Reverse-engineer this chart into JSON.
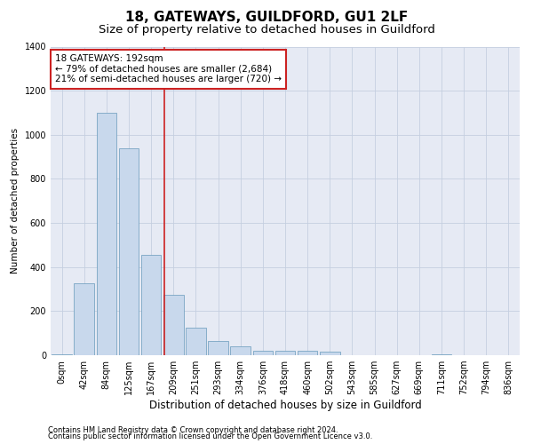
{
  "title1": "18, GATEWAYS, GUILDFORD, GU1 2LF",
  "title2": "Size of property relative to detached houses in Guildford",
  "xlabel": "Distribution of detached houses by size in Guildford",
  "ylabel": "Number of detached properties",
  "bar_labels": [
    "0sqm",
    "42sqm",
    "84sqm",
    "125sqm",
    "167sqm",
    "209sqm",
    "251sqm",
    "293sqm",
    "334sqm",
    "376sqm",
    "418sqm",
    "460sqm",
    "502sqm",
    "543sqm",
    "585sqm",
    "627sqm",
    "669sqm",
    "711sqm",
    "752sqm",
    "794sqm",
    "836sqm"
  ],
  "bar_values": [
    5,
    325,
    1100,
    940,
    455,
    275,
    125,
    65,
    40,
    20,
    20,
    20,
    15,
    0,
    0,
    0,
    0,
    5,
    0,
    0,
    0
  ],
  "bar_color": "#c8d8ec",
  "bar_edge_color": "#6699bb",
  "vline_color": "#cc2222",
  "annotation_text": "18 GATEWAYS: 192sqm\n← 79% of detached houses are smaller (2,684)\n21% of semi-detached houses are larger (720) →",
  "annotation_box_color": "#ffffff",
  "annotation_box_edge": "#cc2222",
  "ylim": [
    0,
    1400
  ],
  "yticks": [
    0,
    200,
    400,
    600,
    800,
    1000,
    1200,
    1400
  ],
  "grid_color": "#c5cfe0",
  "bg_color": "#e6eaf4",
  "footnote1": "Contains HM Land Registry data © Crown copyright and database right 2024.",
  "footnote2": "Contains public sector information licensed under the Open Government Licence v3.0.",
  "title1_fontsize": 11,
  "title2_fontsize": 9.5,
  "xlabel_fontsize": 8.5,
  "ylabel_fontsize": 7.5,
  "tick_fontsize": 7,
  "annotation_fontsize": 7.5,
  "footnote_fontsize": 6
}
